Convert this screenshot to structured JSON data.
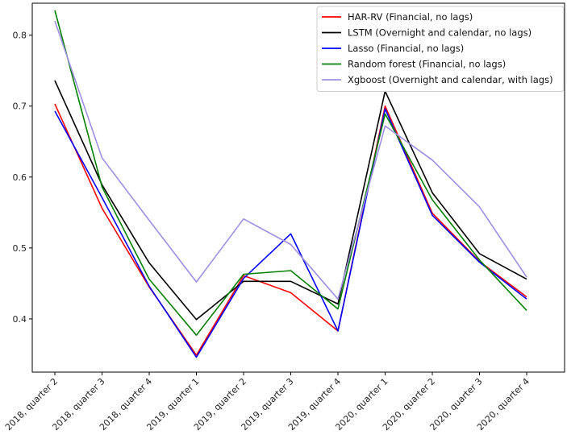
{
  "chart_data": {
    "type": "line",
    "title": "",
    "xlabel": "",
    "ylabel": "",
    "categories": [
      "2018, quarter 2",
      "2018, quarter 3",
      "2018, quarter 4",
      "2019, quarter 1",
      "2019, quarter 2",
      "2019, quarter 3",
      "2019, quarter 4",
      "2020, quarter 1",
      "2020, quarter 2",
      "2020, quarter 3",
      "2020, quarter 4"
    ],
    "ylim": [
      0.325,
      0.845
    ],
    "yticks": [
      0.4,
      0.5,
      0.6,
      0.7,
      0.8
    ],
    "ytick_labels": [
      "0.4",
      "0.5",
      "0.6",
      "0.7",
      "0.8"
    ],
    "grid": false,
    "legend_position": "top-right",
    "series": [
      {
        "name": "HAR-RV (Financial, no lags)",
        "color": "#ff0000",
        "values": [
          0.703,
          0.556,
          0.445,
          0.349,
          0.461,
          0.437,
          0.383,
          0.7,
          0.549,
          0.481,
          0.431
        ]
      },
      {
        "name": "LSTM (Overnight and calendar, no lags)",
        "color": "#000000",
        "values": [
          0.736,
          0.589,
          0.479,
          0.399,
          0.453,
          0.453,
          0.421,
          0.721,
          0.578,
          0.492,
          0.456
        ]
      },
      {
        "name": "Lasso (Financial, no lags)",
        "color": "#0000ff",
        "values": [
          0.693,
          0.571,
          0.446,
          0.346,
          0.457,
          0.52,
          0.383,
          0.696,
          0.546,
          0.48,
          0.428
        ]
      },
      {
        "name": "Random forest (Financial, no lags)",
        "color": "#008000",
        "values": [
          0.835,
          0.586,
          0.456,
          0.377,
          0.463,
          0.468,
          0.414,
          0.689,
          0.568,
          0.483,
          0.412
        ]
      },
      {
        "name": "Xgboost (Overnight and calendar, with lags)",
        "color": "#9f8ee3",
        "values": [
          0.82,
          0.627,
          0.539,
          0.452,
          0.541,
          0.505,
          0.428,
          0.672,
          0.624,
          0.558,
          0.459
        ]
      }
    ]
  }
}
